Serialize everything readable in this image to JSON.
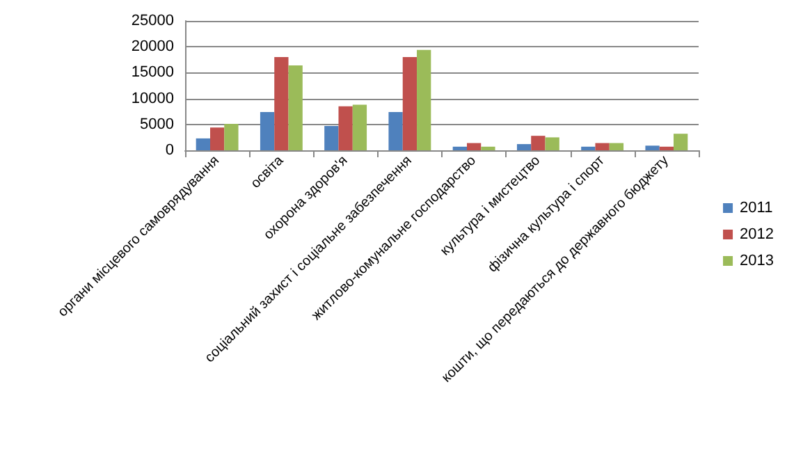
{
  "chart_data": {
    "type": "bar",
    "categories": [
      "органи місцевого самоврядування",
      "освіта",
      "охорона здоров'я",
      "соціальний захист і соціальне забезпечення",
      "житлово-комунальне господарство",
      "культура і мистецтво",
      "фізична культура і спорт",
      "кошти, що передаються до державного бюджету"
    ],
    "series": [
      {
        "name": "2011",
        "color": "#4f81bd",
        "values": [
          2300,
          7400,
          4700,
          7400,
          700,
          1200,
          700,
          900
        ]
      },
      {
        "name": "2012",
        "color": "#c0504d",
        "values": [
          4400,
          18000,
          8500,
          18000,
          1400,
          2800,
          1400,
          700
        ]
      },
      {
        "name": "2013",
        "color": "#9bbb59",
        "values": [
          5100,
          16400,
          8800,
          19400,
          700,
          2500,
          1400,
          3200
        ]
      }
    ],
    "ylim": [
      0,
      25000
    ],
    "yticks": [
      0,
      5000,
      10000,
      15000,
      20000,
      25000
    ],
    "grid": "y",
    "legend": "right"
  }
}
